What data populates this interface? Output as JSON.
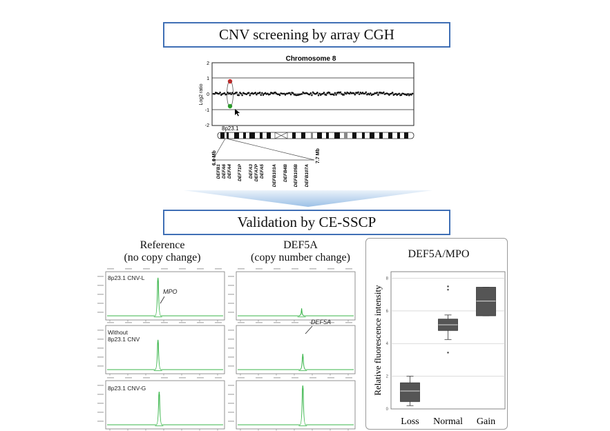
{
  "top_title": "CNV screening by array CGH",
  "validation_title": "Validation by CE-SSCP",
  "acgh": {
    "chart_title": "Chromosome 8",
    "ylabel": "Log2 ratio",
    "y_ticks": [
      "2",
      "1",
      "0",
      "-1",
      "-2"
    ],
    "band_label": "8p23.1",
    "left_coord": "6.6 Mb",
    "right_coord": "7.7 Mb",
    "genes": [
      "DEFB1",
      "DEFA6",
      "DEFA4",
      "DEFT1P",
      "DEFA3",
      "DEFA7P",
      "DEFA5",
      "DEFB103A",
      "DEFB4B",
      "DEFB105B",
      "DEFB107A"
    ]
  },
  "sscp": {
    "ref_title": "Reference",
    "ref_subtitle": "(no copy change)",
    "def_title": "DEF5A",
    "def_subtitle": "(copy number change)",
    "row_labels": [
      "8p23.1 CNV-L",
      "Without\n8p23.1 CNV",
      "8p23.1 CNV-G"
    ],
    "mpo_label": "MPO",
    "def5a_label": "DEF5A"
  },
  "box_title": "DEF5A/MPO",
  "chart_data": {
    "type": "boxplot",
    "title": "DEF5A/MPO",
    "ylabel": "Relative fluorescence intensity",
    "categories": [
      "Loss",
      "Normal",
      "Gain"
    ],
    "y_ticks": [
      "0",
      "2",
      "4",
      "6",
      "8"
    ],
    "ylim": [
      0,
      8.4
    ],
    "boxes": [
      {
        "name": "Loss",
        "whisker_low": 0.2,
        "q1": 0.45,
        "median": 1.1,
        "q3": 1.6,
        "whisker_high": 2.0,
        "outliers": []
      },
      {
        "name": "Normal",
        "whisker_low": 4.25,
        "q1": 4.8,
        "median": 5.15,
        "q3": 5.5,
        "whisker_high": 5.75,
        "outliers": [
          3.45,
          7.3,
          7.5
        ]
      },
      {
        "name": "Gain",
        "whisker_low": 5.7,
        "q1": 5.7,
        "median": 6.6,
        "q3": 7.45,
        "whisker_high": 7.45,
        "outliers": []
      }
    ]
  }
}
